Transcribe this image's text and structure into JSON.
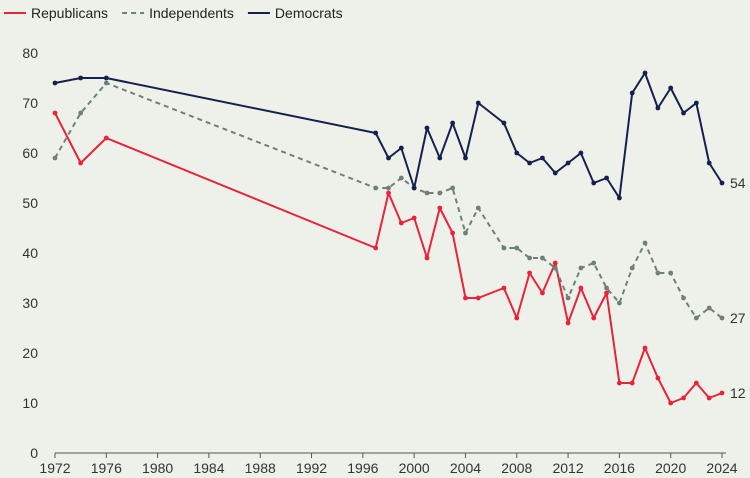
{
  "chart_data": {
    "type": "line",
    "title": "",
    "xlabel": "",
    "ylabel": "",
    "xlim": [
      1972,
      2024
    ],
    "ylim": [
      0,
      80
    ],
    "x_ticks": [
      1972,
      1976,
      1980,
      1984,
      1988,
      1992,
      1996,
      2000,
      2004,
      2008,
      2012,
      2016,
      2020,
      2024
    ],
    "y_ticks": [
      0,
      10,
      20,
      30,
      40,
      50,
      60,
      70,
      80
    ],
    "grid": false,
    "legend": "top-left",
    "series": [
      {
        "name": "Republicans",
        "color": "#e8233a",
        "dash": "solid",
        "end_label": "12",
        "x": [
          1972,
          1974,
          1976,
          1997,
          1998,
          1999,
          2000,
          2001,
          2002,
          2003,
          2004,
          2005,
          2007,
          2008,
          2009,
          2010,
          2011,
          2012,
          2013,
          2014,
          2015,
          2016,
          2017,
          2018,
          2019,
          2020,
          2021,
          2022,
          2023,
          2024
        ],
        "values": [
          68,
          58,
          63,
          41,
          52,
          46,
          47,
          39,
          49,
          44,
          31,
          31,
          33,
          27,
          36,
          32,
          38,
          26,
          33,
          27,
          32,
          14,
          14,
          21,
          15,
          10,
          11,
          14,
          11,
          12
        ]
      },
      {
        "name": "Independents",
        "color": "#6d8079",
        "dash": "dashed",
        "end_label": "27",
        "x": [
          1972,
          1974,
          1976,
          1997,
          1998,
          1999,
          2000,
          2001,
          2002,
          2003,
          2004,
          2005,
          2007,
          2008,
          2009,
          2010,
          2011,
          2012,
          2013,
          2014,
          2015,
          2016,
          2017,
          2018,
          2019,
          2020,
          2021,
          2022,
          2023,
          2024
        ],
        "values": [
          59,
          68,
          74,
          53,
          53,
          55,
          53,
          52,
          52,
          53,
          44,
          49,
          41,
          41,
          39,
          39,
          37,
          31,
          37,
          38,
          33,
          30,
          37,
          42,
          36,
          36,
          31,
          27,
          29,
          27
        ]
      },
      {
        "name": "Democrats",
        "color": "#16204f",
        "dash": "solid",
        "end_label": "54",
        "x": [
          1972,
          1974,
          1976,
          1997,
          1998,
          1999,
          2000,
          2001,
          2002,
          2003,
          2004,
          2005,
          2007,
          2008,
          2009,
          2010,
          2011,
          2012,
          2013,
          2014,
          2015,
          2016,
          2017,
          2018,
          2019,
          2020,
          2021,
          2022,
          2023,
          2024
        ],
        "values": [
          74,
          75,
          75,
          64,
          59,
          61,
          53,
          65,
          59,
          66,
          59,
          70,
          66,
          60,
          58,
          59,
          56,
          58,
          60,
          54,
          55,
          51,
          72,
          76,
          69,
          73,
          68,
          70,
          58,
          54
        ]
      }
    ]
  }
}
